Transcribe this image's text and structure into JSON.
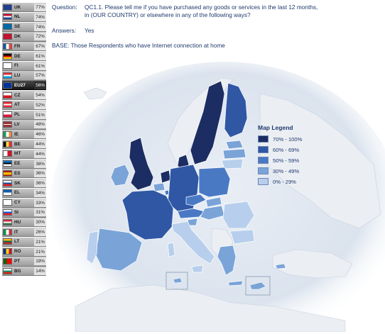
{
  "header": {
    "question_label": "Question:",
    "question_text_line1": "QC1.1. Please tell me if you have purchased any goods or services in the last 12 months,",
    "question_text_line2": "in (OUR COUNTRY) or elsewhere in any of the following ways?",
    "answers_label": "Answers:",
    "answers_value": "Yes",
    "base_text": "BASE: Those Respondents who have Internet connection at home"
  },
  "countries": [
    {
      "code": "UK",
      "value": "77%"
    },
    {
      "code": "NL",
      "value": "74%"
    },
    {
      "code": "SE",
      "value": "74%"
    },
    {
      "code": "DK",
      "value": "72%"
    },
    {
      "code": "FR",
      "value": "67%"
    },
    {
      "code": "DE",
      "value": "61%"
    },
    {
      "code": "FI",
      "value": "61%"
    },
    {
      "code": "LU",
      "value": "57%"
    },
    {
      "code": "EU27",
      "value": "56%"
    },
    {
      "code": "CZ",
      "value": "54%"
    },
    {
      "code": "AT",
      "value": "52%"
    },
    {
      "code": "PL",
      "value": "51%"
    },
    {
      "code": "LV",
      "value": "48%"
    },
    {
      "code": "IE",
      "value": "46%"
    },
    {
      "code": "BE",
      "value": "44%"
    },
    {
      "code": "MT",
      "value": "44%"
    },
    {
      "code": "EE",
      "value": "38%"
    },
    {
      "code": "ES",
      "value": "36%"
    },
    {
      "code": "SK",
      "value": "36%"
    },
    {
      "code": "EL",
      "value": "34%"
    },
    {
      "code": "CY",
      "value": "33%"
    },
    {
      "code": "SI",
      "value": "31%"
    },
    {
      "code": "HU",
      "value": "30%"
    },
    {
      "code": "IT",
      "value": "26%"
    },
    {
      "code": "LT",
      "value": "21%"
    },
    {
      "code": "RO",
      "value": "21%"
    },
    {
      "code": "PT",
      "value": "19%"
    },
    {
      "code": "BG",
      "value": "14%"
    }
  ],
  "legend": {
    "title": "Map Legend",
    "items": [
      {
        "label": "70% - 100%",
        "color": "#1c2d63"
      },
      {
        "label": "60% - 69%",
        "color": "#2f57a4"
      },
      {
        "label": "50% - 59%",
        "color": "#4a79c4"
      },
      {
        "label": "30% - 49%",
        "color": "#7aa4d8"
      },
      {
        "label": "0% - 29%",
        "color": "#b7cfec"
      }
    ]
  },
  "colors": {
    "c70": "#1c2d63",
    "c60": "#2f57a4",
    "c50": "#4a79c4",
    "c30": "#7aa4d8",
    "c0": "#b7cfec",
    "nonEU": "#ebeef3",
    "sea": "#dfe6ef"
  }
}
